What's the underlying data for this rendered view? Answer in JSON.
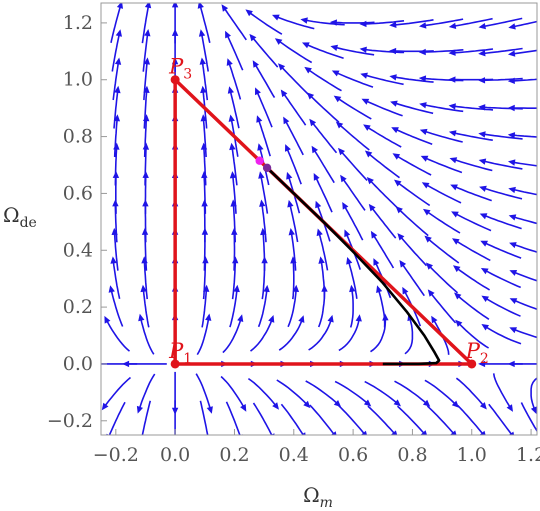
{
  "chart_data": {
    "type": "stream plot (phase portrait)",
    "xlabel": {
      "main": "Ω",
      "sub": "m"
    },
    "ylabel": {
      "main": "Ω",
      "sub": "de"
    },
    "xlim": [
      -0.25,
      1.22
    ],
    "ylim": [
      -0.25,
      1.27
    ],
    "xticks": [
      {
        "v": -0.2,
        "label": "−0.2"
      },
      {
        "v": 0.0,
        "label": "0.0"
      },
      {
        "v": 0.2,
        "label": "0.2"
      },
      {
        "v": 0.4,
        "label": "0.4"
      },
      {
        "v": 0.6,
        "label": "0.6"
      },
      {
        "v": 0.8,
        "label": "0.8"
      },
      {
        "v": 1.0,
        "label": "1.0"
      },
      {
        "v": 1.2,
        "label": "1.2"
      }
    ],
    "yticks": [
      {
        "v": -0.2,
        "label": "−0.2"
      },
      {
        "v": 0.0,
        "label": "0.0"
      },
      {
        "v": 0.2,
        "label": "0.2"
      },
      {
        "v": 0.4,
        "label": "0.4"
      },
      {
        "v": 0.6,
        "label": "0.6"
      },
      {
        "v": 0.8,
        "label": "0.8"
      },
      {
        "v": 1.0,
        "label": "1.0"
      },
      {
        "v": 1.2,
        "label": "1.2"
      }
    ],
    "critical_points": [
      {
        "main": "P",
        "sub": "1",
        "x": 0,
        "y": 0
      },
      {
        "main": "P",
        "sub": "2",
        "x": 1,
        "y": 0
      },
      {
        "main": "P",
        "sub": "3",
        "x": 0,
        "y": 1
      }
    ],
    "boundary": [
      [
        0,
        0
      ],
      [
        1,
        0
      ],
      [
        0,
        1
      ],
      [
        0,
        0
      ]
    ],
    "trajectory": [
      [
        0.31,
        0.69
      ],
      [
        0.4,
        0.6
      ],
      [
        0.5,
        0.5
      ],
      [
        0.6,
        0.395
      ],
      [
        0.7,
        0.285
      ],
      [
        0.78,
        0.185
      ],
      [
        0.84,
        0.1
      ],
      [
        0.875,
        0.04
      ],
      [
        0.89,
        0.012
      ],
      [
        0.88,
        0.003
      ],
      [
        0.82,
        0.0
      ],
      [
        0.7,
        0.0
      ]
    ],
    "markers": [
      {
        "x": 0.285,
        "y": 0.715,
        "color": "#ee22ee"
      },
      {
        "x": 0.31,
        "y": 0.69,
        "color": "#7a2a9a"
      }
    ],
    "colors": {
      "stream": "#1f14e6",
      "boundary": "#e0141b",
      "trajectory": "#000000",
      "frame": "#999999"
    }
  }
}
